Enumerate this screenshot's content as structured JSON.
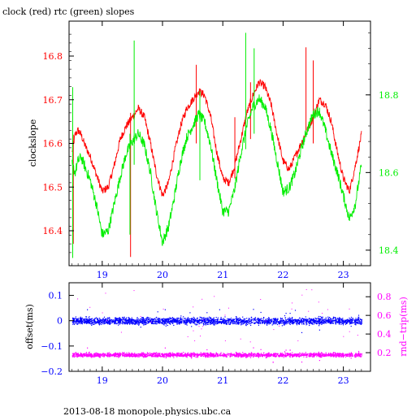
{
  "title": "clock (red) rtc (green) slopes",
  "footer": "2013-08-18  monopole.physics.ubc.ca",
  "colors": {
    "clock": "#ff0000",
    "rtc": "#00ee00",
    "offset": "#0000ff",
    "rndtrip": "#ff00ff",
    "axis": "#000000",
    "left_axis_top": "#ff0000",
    "right_axis_top": "#00ee00",
    "left_axis_bottom": "#0000ff",
    "right_axis_bottom": "#ff00ff"
  },
  "chart_data": [
    {
      "type": "line",
      "title": "clock (red) rtc (green) slopes",
      "xlabel": "",
      "ylabel": "clockslope",
      "xlim": [
        18.45,
        23.45
      ],
      "ylim_left": [
        16.32,
        16.88
      ],
      "ylim_right": [
        18.36,
        18.99
      ],
      "x_ticks": [
        19,
        20,
        21,
        22,
        23
      ],
      "y_ticks_left": [
        "16.4",
        "16.5",
        "16.6",
        "16.7",
        "16.8"
      ],
      "y_ticks_right": [
        "18.4",
        "18.6",
        "18.8"
      ],
      "grid": false,
      "series": [
        {
          "name": "clock",
          "axis": "left",
          "x": [
            18.5,
            18.55,
            18.6,
            18.65,
            18.7,
            18.8,
            18.9,
            19.0,
            19.1,
            19.2,
            19.3,
            19.4,
            19.5,
            19.6,
            19.7,
            19.8,
            19.9,
            20.0,
            20.1,
            20.2,
            20.3,
            20.4,
            20.5,
            20.6,
            20.7,
            20.8,
            20.9,
            21.0,
            21.1,
            21.2,
            21.3,
            21.4,
            21.5,
            21.6,
            21.7,
            21.8,
            21.9,
            22.0,
            22.1,
            22.2,
            22.3,
            22.4,
            22.5,
            22.6,
            22.7,
            22.8,
            22.9,
            23.0,
            23.1,
            23.2,
            23.3
          ],
          "values": [
            16.58,
            16.62,
            16.63,
            16.62,
            16.6,
            16.57,
            16.53,
            16.49,
            16.5,
            16.55,
            16.61,
            16.64,
            16.66,
            16.68,
            16.66,
            16.6,
            16.53,
            16.48,
            16.51,
            16.58,
            16.64,
            16.68,
            16.7,
            16.72,
            16.71,
            16.66,
            16.58,
            16.52,
            16.51,
            16.55,
            16.61,
            16.67,
            16.71,
            16.74,
            16.73,
            16.69,
            16.62,
            16.56,
            16.54,
            16.57,
            16.6,
            16.63,
            16.66,
            16.7,
            16.69,
            16.65,
            16.58,
            16.52,
            16.49,
            16.55,
            16.62
          ],
          "spikes": [
            {
              "x": 18.52,
              "low": 16.37,
              "high": 16.62
            },
            {
              "x": 19.47,
              "low": 16.34,
              "high": 16.67
            },
            {
              "x": 20.56,
              "low": 16.6,
              "high": 16.78
            },
            {
              "x": 21.2,
              "low": 16.52,
              "high": 16.66
            },
            {
              "x": 21.46,
              "low": 16.61,
              "high": 16.74
            },
            {
              "x": 22.38,
              "low": 16.63,
              "high": 16.82
            },
            {
              "x": 22.5,
              "low": 16.6,
              "high": 16.79
            }
          ]
        },
        {
          "name": "rtc",
          "axis": "right",
          "x": [
            18.5,
            18.55,
            18.6,
            18.65,
            18.7,
            18.8,
            18.9,
            19.0,
            19.1,
            19.2,
            19.3,
            19.4,
            19.5,
            19.6,
            19.7,
            19.8,
            19.9,
            20.0,
            20.1,
            20.2,
            20.3,
            20.4,
            20.5,
            20.6,
            20.7,
            20.8,
            20.9,
            21.0,
            21.1,
            21.2,
            21.3,
            21.4,
            21.5,
            21.6,
            21.7,
            21.8,
            21.9,
            22.0,
            22.1,
            22.2,
            22.3,
            22.4,
            22.5,
            22.6,
            22.7,
            22.8,
            22.9,
            23.0,
            23.1,
            23.2,
            23.3
          ],
          "values": [
            18.62,
            18.6,
            18.63,
            18.64,
            18.62,
            18.58,
            18.52,
            18.44,
            18.45,
            18.52,
            18.59,
            18.65,
            18.68,
            18.7,
            18.67,
            18.6,
            18.5,
            18.42,
            18.46,
            18.54,
            18.63,
            18.69,
            18.72,
            18.75,
            18.73,
            18.67,
            18.58,
            18.5,
            18.5,
            18.56,
            18.65,
            18.72,
            18.77,
            18.79,
            18.77,
            18.71,
            18.63,
            18.55,
            18.56,
            18.6,
            18.66,
            18.71,
            18.75,
            18.76,
            18.71,
            18.65,
            18.6,
            18.54,
            18.48,
            18.52,
            18.62
          ],
          "spikes": [
            {
              "x": 18.51,
              "low": 18.38,
              "high": 18.82
            },
            {
              "x": 19.46,
              "low": 18.44,
              "high": 18.7
            },
            {
              "x": 19.53,
              "low": 18.62,
              "high": 18.94
            },
            {
              "x": 20.62,
              "low": 18.58,
              "high": 18.81
            },
            {
              "x": 21.38,
              "low": 18.66,
              "high": 18.96
            },
            {
              "x": 21.52,
              "low": 18.7,
              "high": 18.92
            }
          ]
        }
      ]
    },
    {
      "type": "scatter",
      "xlabel": "",
      "ylabel": "offset(ms)",
      "ylabel_right": "rnd−trip(ms)",
      "xlim": [
        18.45,
        23.45
      ],
      "ylim_left": [
        -0.2,
        0.15
      ],
      "ylim_right": [
        0.0,
        0.95
      ],
      "x_ticks": [
        19,
        20,
        21,
        22,
        23
      ],
      "y_ticks_left": [
        "0.1",
        "0",
        "−0.1",
        "−0.2"
      ],
      "y_ticks_right": [
        "0.8",
        "0.6",
        "0.4",
        "0.2"
      ],
      "grid": false,
      "series": [
        {
          "name": "offset",
          "axis": "left",
          "x_range": [
            18.5,
            23.3
          ],
          "center": 0.0,
          "spread": 0.012
        },
        {
          "name": "rnd-trip",
          "axis": "right",
          "x_range": [
            18.5,
            23.3
          ],
          "center": 0.18,
          "spread": 0.02
        }
      ]
    }
  ]
}
